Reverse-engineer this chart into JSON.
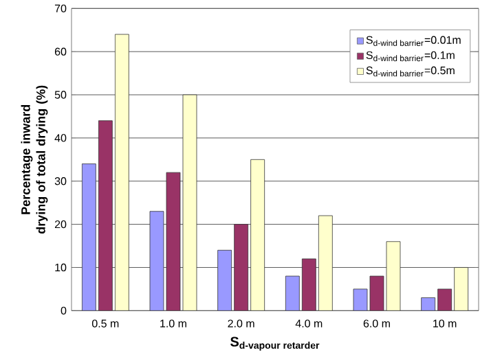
{
  "chart_data": {
    "type": "bar",
    "xlabel": "\\textbf{S}_{\\textbf{d-vapour retarder}}",
    "ylabel": "Percentage inward drying of total drying (%)",
    "categories": [
      "0.5 m",
      "1.0 m",
      "2.0 m",
      "4.0 m",
      "6.0 m",
      "10 m"
    ],
    "series": [
      {
        "name": "\\text{S}_{\\text{d-wind barrier}}\\text{=0.01m}",
        "color": "#9999ff",
        "values": [
          34,
          23,
          14,
          8,
          5,
          3
        ]
      },
      {
        "name": "\\text{S}_{\\text{d-wind barrier}}\\text{=0.1m}",
        "color": "#993366",
        "values": [
          44,
          32,
          20,
          12,
          8,
          5
        ]
      },
      {
        "name": "\\text{S}_{\\text{d-wind barrier}}\\text{=0.5m}",
        "color": "#ffffcc",
        "values": [
          64,
          50,
          35,
          22,
          16,
          10
        ]
      }
    ],
    "ylim": [
      0,
      70
    ],
    "yticks": [
      0,
      10,
      20,
      30,
      40,
      50,
      60,
      70
    ],
    "grid": "y",
    "legend": "top right"
  }
}
